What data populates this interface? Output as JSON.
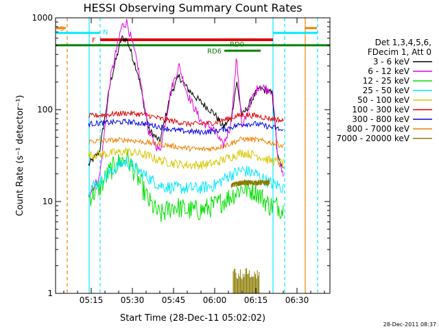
{
  "chart_data": {
    "type": "line",
    "title": "HESSI Observing Summary Count Rates",
    "xlabel": "Start Time (28-Dec-11 05:02:02)",
    "ylabel": "Count Rate (s⁻¹ detector⁻¹)",
    "yscale": "log",
    "ylim": [
      1,
      1000
    ],
    "xlim": [
      "05:02",
      "06:42"
    ],
    "x_ticks": [
      "05:15",
      "05:30",
      "05:45",
      "06:00",
      "06:15",
      "06:30"
    ],
    "y_ticks": [
      "1",
      "10",
      "100",
      "1000"
    ],
    "legend_position": "right",
    "legend_header": [
      "Det 1,3,4,5,6,",
      "FDecim 1, Att 0"
    ],
    "footer_timestamp": "28-Dec-2011 08:37",
    "series": [
      {
        "name": "3 - 6 keV",
        "color": "#000000",
        "x": [
          "05:14",
          "05:18",
          "05:22",
          "05:26",
          "05:28",
          "05:32",
          "05:36",
          "05:40",
          "05:44",
          "05:47",
          "05:50",
          "05:55",
          "06:00",
          "06:03",
          "06:06",
          "06:08",
          "06:10",
          "06:13",
          "06:16",
          "06:19",
          "06:21",
          "06:23",
          "06:25"
        ],
        "y": [
          25,
          35,
          200,
          600,
          580,
          250,
          60,
          45,
          150,
          230,
          170,
          120,
          90,
          65,
          80,
          200,
          85,
          120,
          170,
          160,
          150,
          30,
          22
        ]
      },
      {
        "name": "6 - 12 keV",
        "color": "#e000e0",
        "x": [
          "05:14",
          "05:18",
          "05:22",
          "05:26",
          "05:28",
          "05:32",
          "05:36",
          "05:40",
          "05:44",
          "05:47",
          "05:50",
          "05:55",
          "06:00",
          "06:03",
          "06:06",
          "06:08",
          "06:10",
          "06:13",
          "06:16",
          "06:19",
          "06:21",
          "06:23",
          "06:25"
        ],
        "y": [
          12,
          18,
          220,
          800,
          900,
          300,
          55,
          35,
          160,
          300,
          150,
          75,
          60,
          40,
          70,
          380,
          60,
          120,
          180,
          170,
          160,
          28,
          20
        ]
      },
      {
        "name": "12 - 25 keV",
        "color": "#00e000",
        "x": [
          "05:14",
          "05:18",
          "05:22",
          "05:26",
          "05:28",
          "05:32",
          "05:36",
          "05:40",
          "05:45",
          "05:50",
          "05:55",
          "06:00",
          "06:05",
          "06:10",
          "06:15",
          "06:20",
          "06:23",
          "06:25"
        ],
        "y": [
          11,
          14,
          22,
          28,
          30,
          18,
          10,
          7,
          9,
          8,
          8,
          9,
          11,
          14,
          13,
          9,
          9,
          8
        ]
      },
      {
        "name": "25 - 50 keV",
        "color": "#00e8ff",
        "x": [
          "05:14",
          "05:18",
          "05:22",
          "05:26",
          "05:28",
          "05:32",
          "05:36",
          "05:40",
          "05:45",
          "05:50",
          "05:55",
          "06:00",
          "06:05",
          "06:10",
          "06:15",
          "06:20",
          "06:23",
          "06:25"
        ],
        "y": [
          14,
          16,
          21,
          26,
          27,
          22,
          18,
          15,
          14,
          14,
          14,
          15,
          19,
          22,
          20,
          16,
          15,
          14
        ]
      },
      {
        "name": "50 - 100 keV",
        "color": "#d8c800",
        "x": [
          "05:14",
          "05:20",
          "05:28",
          "05:35",
          "05:40",
          "05:45",
          "05:50",
          "05:55",
          "06:00",
          "06:05",
          "06:10",
          "06:15",
          "06:20",
          "06:23",
          "06:25"
        ],
        "y": [
          32,
          33,
          35,
          32,
          28,
          26,
          25,
          25,
          26,
          30,
          34,
          32,
          28,
          27,
          26
        ]
      },
      {
        "name": "100 - 300 keV",
        "color": "#e00000",
        "x": [
          "05:14",
          "05:20",
          "05:28",
          "05:35",
          "05:40",
          "05:45",
          "05:50",
          "05:55",
          "06:00",
          "06:05",
          "06:10",
          "06:15",
          "06:20",
          "06:23",
          "06:25"
        ],
        "y": [
          85,
          88,
          92,
          88,
          80,
          75,
          70,
          70,
          72,
          80,
          88,
          86,
          80,
          78,
          75
        ]
      },
      {
        "name": "300 - 800 keV",
        "color": "#0000e0",
        "x": [
          "05:14",
          "05:20",
          "05:28",
          "05:35",
          "05:40",
          "05:45",
          "05:50",
          "05:55",
          "06:00",
          "06:05",
          "06:10",
          "06:15",
          "06:20",
          "06:23",
          "06:25"
        ],
        "y": [
          70,
          72,
          74,
          70,
          65,
          60,
          58,
          57,
          58,
          63,
          70,
          70,
          65,
          62,
          58
        ]
      },
      {
        "name": "800 - 7000 keV",
        "color": "#f08000",
        "x": [
          "05:14",
          "05:20",
          "05:28",
          "05:35",
          "05:40",
          "05:45",
          "05:50",
          "05:55",
          "06:00",
          "06:05",
          "06:10",
          "06:15",
          "06:20",
          "06:23",
          "06:25"
        ],
        "y": [
          45,
          46,
          47,
          44,
          42,
          40,
          38,
          37,
          38,
          42,
          48,
          47,
          44,
          42,
          40
        ]
      },
      {
        "name": "7000 - 20000 keV",
        "color": "#8a7a00",
        "x": [
          "06:06",
          "06:10",
          "06:15",
          "06:20"
        ],
        "y": [
          15,
          16,
          16,
          16
        ]
      }
    ],
    "flags": [
      {
        "label": "S",
        "color": "#f08000"
      },
      {
        "label": "N",
        "color": "#00e8ff"
      },
      {
        "label": "F",
        "color": "#e00000"
      },
      {
        "label": "RD0",
        "color": "#008000"
      },
      {
        "label": "RD6",
        "color": "#008000"
      }
    ]
  }
}
